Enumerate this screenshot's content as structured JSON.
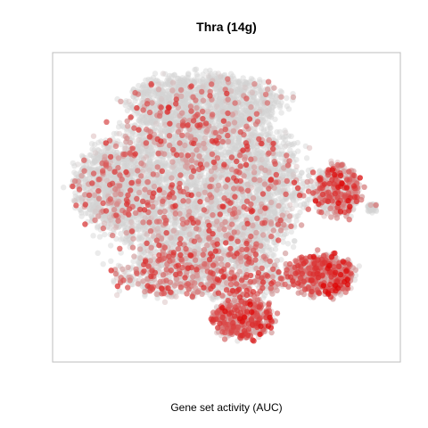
{
  "chart_data": {
    "type": "scatter",
    "title": "Thra (14g)",
    "xlabel": "Gene set activity (AUC)",
    "ylabel": "",
    "axes": "none",
    "grid": false,
    "legend": "none",
    "color_scale": {
      "low": "#d3d3d3",
      "high": "#dd0000"
    },
    "point_count": 9000,
    "xlim": [
      0,
      100
    ],
    "ylim": [
      0,
      100
    ],
    "clusters": [
      {
        "name": "main-body",
        "x": 42,
        "y": 57,
        "rx": 30,
        "ry": 28,
        "share": 0.52,
        "activity": 0.08
      },
      {
        "name": "upper-lobe",
        "x": 43,
        "y": 87,
        "rx": 23,
        "ry": 9,
        "share": 0.12,
        "activity": 0.04
      },
      {
        "name": "left-lobe",
        "x": 12,
        "y": 57,
        "rx": 9,
        "ry": 13,
        "share": 0.06,
        "activity": 0.06
      },
      {
        "name": "lower-band",
        "x": 45,
        "y": 27,
        "rx": 28,
        "ry": 8,
        "share": 0.1,
        "activity": 0.22
      },
      {
        "name": "bottom-cluster",
        "x": 55,
        "y": 12,
        "rx": 9,
        "ry": 7,
        "share": 0.05,
        "activity": 0.45
      },
      {
        "name": "right-lower-cluster",
        "x": 80,
        "y": 27,
        "rx": 9,
        "ry": 7,
        "share": 0.06,
        "activity": 0.42
      },
      {
        "name": "right-upper-cluster",
        "x": 84,
        "y": 56,
        "rx": 7,
        "ry": 9,
        "share": 0.05,
        "activity": 0.32
      },
      {
        "name": "far-right-islet",
        "x": 95,
        "y": 50,
        "rx": 1.5,
        "ry": 1.5,
        "share": 0.004,
        "activity": 0.05
      }
    ]
  }
}
